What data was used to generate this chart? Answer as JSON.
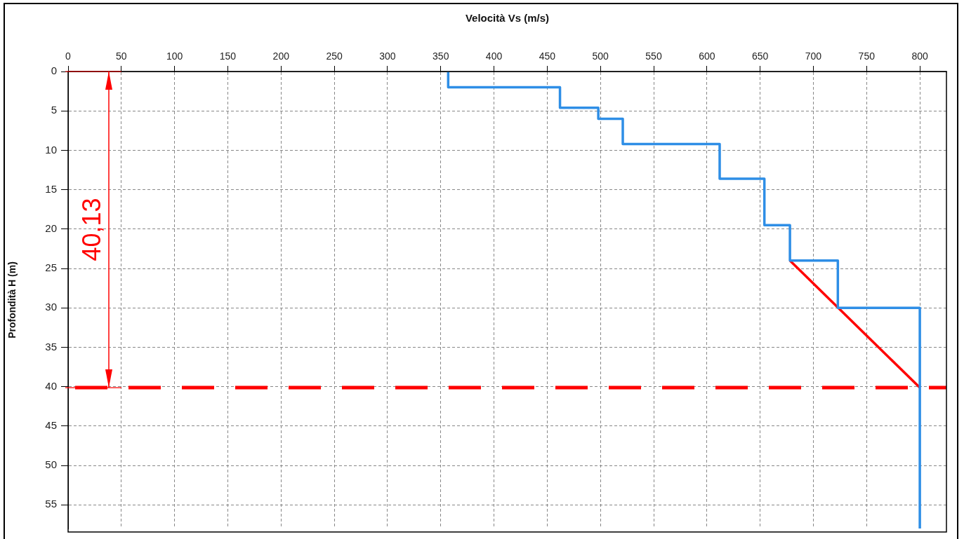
{
  "chart_data": {
    "type": "line",
    "xlabel": "Velocità Vs (m/s)",
    "ylabel": "Profondità H (m)",
    "xlim": [
      0,
      825
    ],
    "xticks": [
      0,
      50,
      100,
      150,
      200,
      250,
      300,
      350,
      400,
      450,
      500,
      550,
      600,
      650,
      700,
      750,
      800
    ],
    "ylim": [
      58,
      0
    ],
    "yticks": [
      0,
      5,
      10,
      15,
      20,
      25,
      30,
      35,
      40,
      45,
      50,
      55
    ],
    "series": [
      {
        "color": "#2e8ee6",
        "x": [
          357,
          357,
          462,
          462,
          498,
          498,
          521,
          521,
          612,
          612,
          654,
          654,
          678,
          678,
          723,
          723,
          800,
          800
        ],
        "values": [
          0,
          2,
          2,
          4.6,
          4.6,
          6,
          6,
          9.2,
          9.2,
          13.6,
          13.6,
          19.5,
          19.5,
          24,
          24,
          30,
          30,
          58
        ]
      },
      {
        "color": "#ff0000",
        "x": [
          678,
          800
        ],
        "values": [
          24,
          40.13
        ]
      }
    ],
    "ref_lines": [
      {
        "axis": "y",
        "value": 40.13,
        "label": "40,13",
        "color": "#ff0000",
        "line_style": "dashed"
      }
    ],
    "grid": true,
    "marker": "none",
    "line_style": "solid",
    "legend": false
  }
}
